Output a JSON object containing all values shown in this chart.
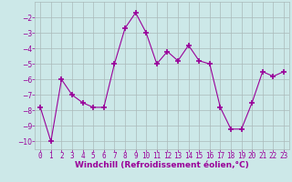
{
  "x": [
    0,
    1,
    2,
    3,
    4,
    5,
    6,
    7,
    8,
    9,
    10,
    11,
    12,
    13,
    14,
    15,
    16,
    17,
    18,
    19,
    20,
    21,
    22,
    23
  ],
  "y": [
    -7.8,
    -10.0,
    -6.0,
    -7.0,
    -7.5,
    -7.8,
    -7.8,
    -5.0,
    -2.7,
    -1.7,
    -3.0,
    -5.0,
    -4.2,
    -4.8,
    -3.8,
    -4.8,
    -5.0,
    -7.8,
    -9.2,
    -9.2,
    -7.5,
    -5.5,
    -5.8,
    -5.5
  ],
  "xlim": [
    -0.5,
    23.5
  ],
  "ylim": [
    -10.5,
    -1.0
  ],
  "yticks": [
    -2,
    -3,
    -4,
    -5,
    -6,
    -7,
    -8,
    -9,
    -10
  ],
  "xticks": [
    0,
    1,
    2,
    3,
    4,
    5,
    6,
    7,
    8,
    9,
    10,
    11,
    12,
    13,
    14,
    15,
    16,
    17,
    18,
    19,
    20,
    21,
    22,
    23
  ],
  "xlabel": "Windchill (Refroidissement éolien,°C)",
  "line_color": "#990099",
  "marker_color": "#990099",
  "bg_color": "#cce8e8",
  "grid_color": "#aababa",
  "tick_color": "#990099",
  "label_color": "#990099",
  "tick_fontsize": 5.5,
  "label_fontsize": 6.5
}
